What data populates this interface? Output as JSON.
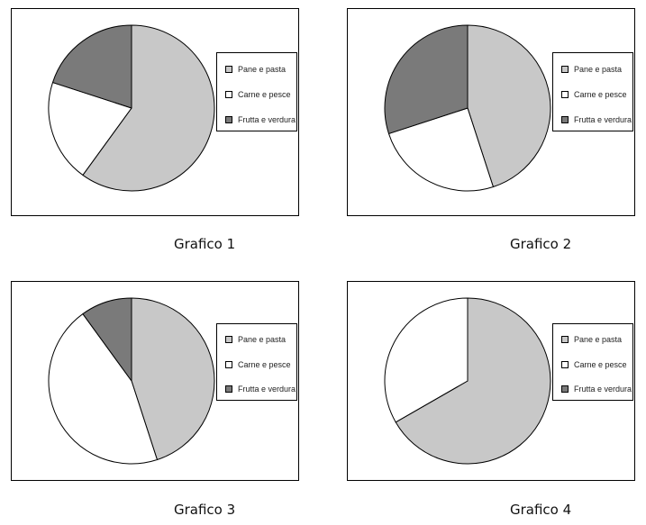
{
  "colors": {
    "Pane e pasta": "#c8c8c8",
    "Carne e pesce": "#ffffff",
    "Frutta e verdura": "#7a7a7a"
  },
  "chart_data": [
    {
      "type": "pie",
      "caption": "Grafico 1",
      "legend": [
        "Pane e pasta",
        "Carne e pesce",
        "Frutta e verdura"
      ],
      "slices": [
        {
          "label": "Pane e pasta",
          "value": 60
        },
        {
          "label": "Carne e pesce",
          "value": 20
        },
        {
          "label": "Frutta e verdura",
          "value": 20
        }
      ]
    },
    {
      "type": "pie",
      "caption": "Grafico 2",
      "legend": [
        "Pane e pasta",
        "Carne e pesce",
        "Frutta e verdura"
      ],
      "slices": [
        {
          "label": "Pane e pasta",
          "value": 45
        },
        {
          "label": "Carne e pesce",
          "value": 25
        },
        {
          "label": "Frutta e verdura",
          "value": 30
        }
      ]
    },
    {
      "type": "pie",
      "caption": "Grafico 3",
      "legend": [
        "Pane e pasta",
        "Carne e pesce",
        "Frutta e verdura"
      ],
      "slices": [
        {
          "label": "Pane e pasta",
          "value": 45
        },
        {
          "label": "Carne e pesce",
          "value": 45
        },
        {
          "label": "Frutta e verdura",
          "value": 10
        }
      ]
    },
    {
      "type": "pie",
      "caption": "Grafico 4",
      "legend": [
        "Pane e pasta",
        "Carne e pesce",
        "Frutta e verdura"
      ],
      "slices": [
        {
          "label": "Pane e pasta",
          "value": 66.7
        },
        {
          "label": "Carne e pesce",
          "value": 33.3
        },
        {
          "label": "Frutta e verdura",
          "value": 0
        }
      ]
    }
  ]
}
